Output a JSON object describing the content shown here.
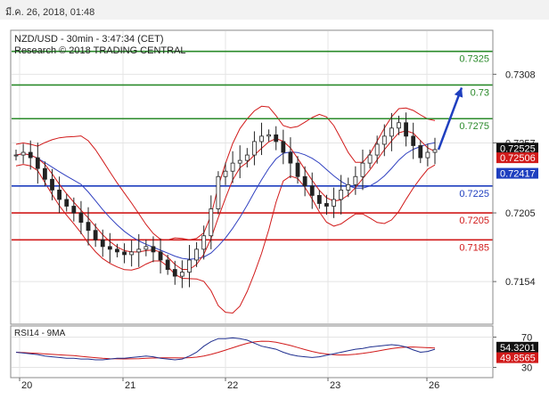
{
  "header": {
    "datetime": "มี.ค. 26, 2018, 01:48"
  },
  "chart_data": {
    "type": "line",
    "title": "NZD/USD - 30min - 3:47:34 (CET)",
    "subtitle": "Research © 2018 TRADING CENTRAL",
    "xlabel": "",
    "ylabel": "",
    "x_ticks": [
      "20",
      "21",
      "22",
      "23",
      "26"
    ],
    "y_ticks": [
      0.7308,
      0.7257,
      0.7205,
      0.7154
    ],
    "ylim": [
      0.7123,
      0.734
    ],
    "grid": true,
    "levels": [
      {
        "value": 0.7325,
        "label": "0.7325",
        "color": "#2a8a2a"
      },
      {
        "value": 0.73,
        "label": "0.73",
        "color": "#2a8a2a"
      },
      {
        "value": 0.7275,
        "label": "0.7275",
        "color": "#2a8a2a"
      },
      {
        "value": 0.7225,
        "label": "0.7225",
        "color": "#1f3fbf"
      },
      {
        "value": 0.7205,
        "label": "0.7205",
        "color": "#d11a1a"
      },
      {
        "value": 0.7185,
        "label": "0.7185",
        "color": "#d11a1a"
      }
    ],
    "price_tags": [
      {
        "value": 0.72525,
        "label": "0.72525",
        "bg": "#111111",
        "fg": "#ffffff"
      },
      {
        "value": 0.72506,
        "label": "0.72506",
        "bg": "#d11a1a",
        "fg": "#ffffff"
      },
      {
        "value": 0.72417,
        "label": "0.72417",
        "bg": "#1f3fbf",
        "fg": "#ffffff"
      }
    ],
    "close": [
      0.7248,
      0.725,
      0.7246,
      0.7238,
      0.723,
      0.7222,
      0.7215,
      0.721,
      0.7205,
      0.7198,
      0.7192,
      0.7185,
      0.718,
      0.7178,
      0.7176,
      0.7174,
      0.7176,
      0.7178,
      0.718,
      0.7176,
      0.717,
      0.7163,
      0.7158,
      0.7161,
      0.717,
      0.7178,
      0.7188,
      0.7208,
      0.7232,
      0.7236,
      0.7242,
      0.7244,
      0.7248,
      0.7258,
      0.7262,
      0.7263,
      0.7258,
      0.725,
      0.7242,
      0.7232,
      0.7225,
      0.7218,
      0.7212,
      0.721,
      0.7215,
      0.7222,
      0.7226,
      0.7232,
      0.7242,
      0.7248,
      0.7256,
      0.7262,
      0.7268,
      0.7272,
      0.7262,
      0.7255,
      0.7246,
      0.725,
      0.7252
    ],
    "projection": {
      "from": 0.7252,
      "to": 0.7298
    },
    "rsi": {
      "label": "RSI14 - 9MA",
      "ylim": [
        20,
        80
      ],
      "y_ticks": [
        70,
        30
      ],
      "tags": [
        {
          "value": 54.3201,
          "label": "54.3201",
          "bg": "#111111",
          "fg": "#ffffff"
        },
        {
          "value": 49.8565,
          "label": "49.8565",
          "bg": "#d11a1a",
          "fg": "#ffffff"
        }
      ],
      "values": [
        50,
        49,
        48,
        47,
        45,
        44,
        43,
        42,
        42,
        41,
        41,
        40,
        40,
        41,
        42,
        42,
        43,
        44,
        45,
        44,
        42,
        41,
        40,
        41,
        45,
        50,
        58,
        64,
        68,
        68,
        69,
        68,
        66,
        62,
        58,
        56,
        54,
        50,
        47,
        45,
        44,
        43,
        44,
        46,
        48,
        50,
        52,
        54,
        55,
        57,
        58,
        59,
        60,
        59,
        57,
        53,
        50,
        51,
        54
      ]
    }
  }
}
